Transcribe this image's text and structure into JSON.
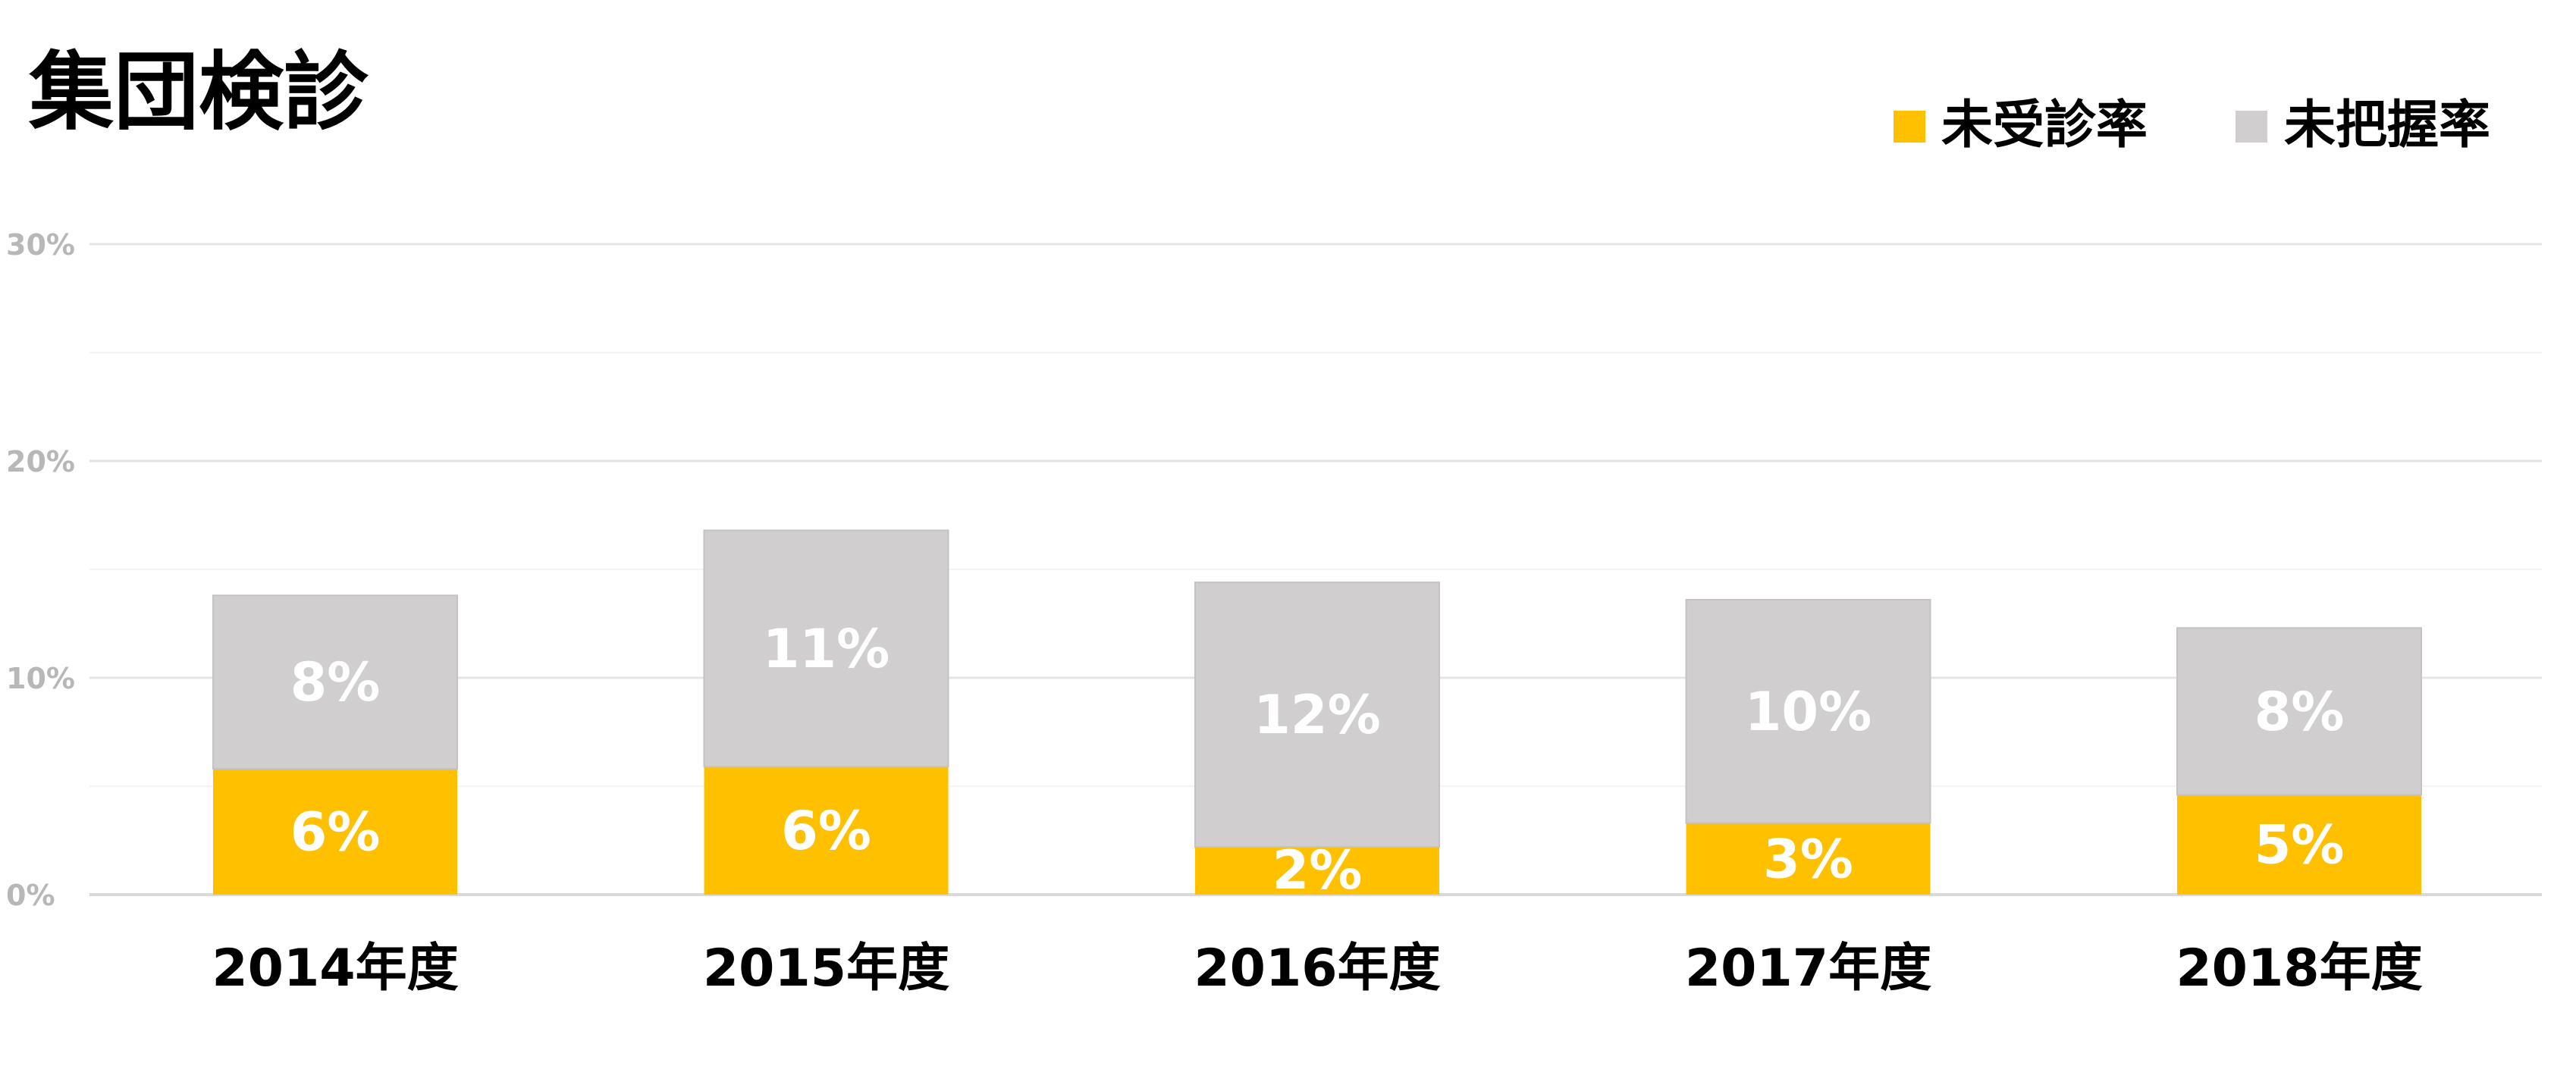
{
  "chart_data": {
    "type": "bar",
    "stacked": true,
    "title": "集団検診",
    "xlabel": "",
    "ylabel": "",
    "categories": [
      "2014年度",
      "2015年度",
      "2016年度",
      "2017年度",
      "2018年度"
    ],
    "series": [
      {
        "name": "未受診率",
        "color": "#FFC000",
        "values": [
          5.8,
          5.9,
          2.2,
          3.3,
          4.6
        ],
        "labels": [
          "6%",
          "6%",
          "2%",
          "3%",
          "5%"
        ]
      },
      {
        "name": "未把握率",
        "color": "#D0CECE",
        "values": [
          8.0,
          10.9,
          12.2,
          10.3,
          7.7
        ],
        "labels": [
          "8%",
          "11%",
          "12%",
          "10%",
          "8%"
        ]
      }
    ],
    "ylim": [
      0,
      30
    ],
    "yticks": [
      0,
      10,
      20,
      30
    ],
    "ytick_labels": [
      "0%",
      "10%",
      "20%",
      "30%"
    ],
    "grid": true,
    "legend": "top-right"
  }
}
